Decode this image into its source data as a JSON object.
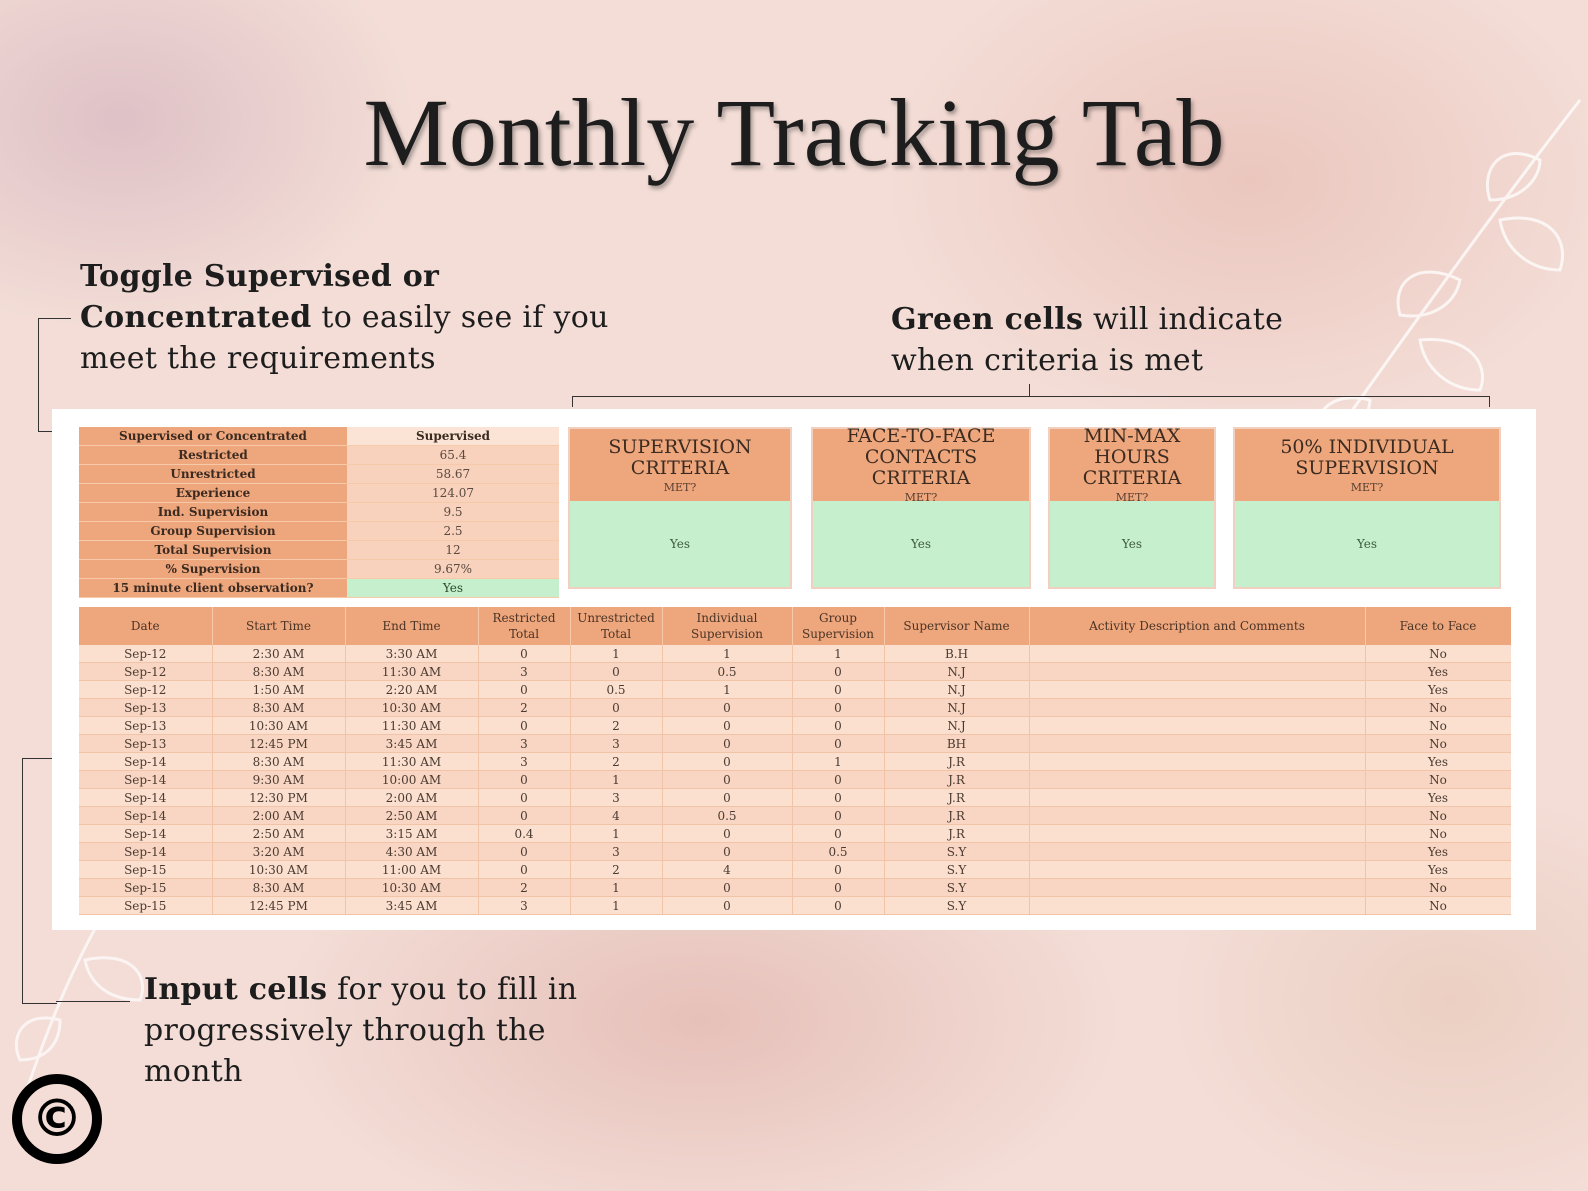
{
  "title": "Monthly Tracking Tab",
  "notes": {
    "toggle": {
      "bold": "Toggle Supervised or Concentrated",
      "rest": "to easily see if you meet the requirements"
    },
    "green": {
      "bold": "Green cells",
      "rest": "will indicate when criteria is met"
    },
    "input": {
      "bold": "Input cells",
      "rest": "for you to fill in progressively through the month"
    }
  },
  "summary": {
    "rows": [
      {
        "label": "Supervised or Concentrated",
        "value": "Supervised"
      },
      {
        "label": "Restricted",
        "value": "65.4"
      },
      {
        "label": "Unrestricted",
        "value": "58.67"
      },
      {
        "label": "Experience",
        "value": "124.07"
      },
      {
        "label": "Ind. Supervision",
        "value": "9.5"
      },
      {
        "label": "Group Supervision",
        "value": "2.5"
      },
      {
        "label": "Total Supervision",
        "value": "12"
      },
      {
        "label": "% Supervision",
        "value": "9.67%"
      },
      {
        "label": "15 minute client observation?",
        "value": "Yes"
      }
    ]
  },
  "criteria": [
    {
      "title": "SUPERVISION CRITERIA",
      "met_label": "MET?",
      "value": "Yes"
    },
    {
      "title": "FACE-TO-FACE CONTACTS CRITERIA",
      "met_label": "MET?",
      "value": "Yes"
    },
    {
      "title": "MIN-MAX HOURS CRITERIA",
      "met_label": "MET?",
      "value": "Yes"
    },
    {
      "title": "50% INDIVIDUAL SUPERVISION",
      "met_label": "MET?",
      "value": "Yes"
    }
  ],
  "log": {
    "columns": [
      "Date",
      "Start Time",
      "End Time",
      "Restricted Total",
      "Unrestricted Total",
      "Individual Supervision",
      "Group Supervision",
      "Supervisor Name",
      "Activity Description and Comments",
      "Face to Face"
    ],
    "rows": [
      [
        "Sep-12",
        "2:30 AM",
        "3:30 AM",
        "0",
        "1",
        "1",
        "1",
        "B.H",
        "",
        "No"
      ],
      [
        "Sep-12",
        "8:30 AM",
        "11:30 AM",
        "3",
        "0",
        "0.5",
        "0",
        "N.J",
        "",
        "Yes"
      ],
      [
        "Sep-12",
        "1:50 AM",
        "2:20 AM",
        "0",
        "0.5",
        "1",
        "0",
        "N.J",
        "",
        "Yes"
      ],
      [
        "Sep-13",
        "8:30 AM",
        "10:30 AM",
        "2",
        "0",
        "0",
        "0",
        "N.J",
        "",
        "No"
      ],
      [
        "Sep-13",
        "10:30 AM",
        "11:30 AM",
        "0",
        "2",
        "0",
        "0",
        "N.J",
        "",
        "No"
      ],
      [
        "Sep-13",
        "12:45 PM",
        "3:45 AM",
        "3",
        "3",
        "0",
        "0",
        "BH",
        "",
        "No"
      ],
      [
        "Sep-14",
        "8:30 AM",
        "11:30 AM",
        "3",
        "2",
        "0",
        "1",
        "J.R",
        "",
        "Yes"
      ],
      [
        "Sep-14",
        "9:30 AM",
        "10:00 AM",
        "0",
        "1",
        "0",
        "0",
        "J.R",
        "",
        "No"
      ],
      [
        "Sep-14",
        "12:30 PM",
        "2:00 AM",
        "0",
        "3",
        "0",
        "0",
        "J.R",
        "",
        "Yes"
      ],
      [
        "Sep-14",
        "2:00 AM",
        "2:50 AM",
        "0",
        "4",
        "0.5",
        "0",
        "J.R",
        "",
        "No"
      ],
      [
        "Sep-14",
        "2:50 AM",
        "3:15 AM",
        "0.4",
        "1",
        "0",
        "0",
        "J.R",
        "",
        "No"
      ],
      [
        "Sep-14",
        "3:20 AM",
        "4:30 AM",
        "0",
        "3",
        "0",
        "0.5",
        "S.Y",
        "",
        "Yes"
      ],
      [
        "Sep-15",
        "10:30 AM",
        "11:00 AM",
        "0",
        "2",
        "4",
        "0",
        "S.Y",
        "",
        "Yes"
      ],
      [
        "Sep-15",
        "8:30 AM",
        "10:30 AM",
        "2",
        "1",
        "0",
        "0",
        "S.Y",
        "",
        "No"
      ],
      [
        "Sep-15",
        "12:45 PM",
        "3:45 AM",
        "3",
        "1",
        "0",
        "0",
        "S.Y",
        "",
        "No"
      ]
    ]
  },
  "copyright_symbol": "©"
}
